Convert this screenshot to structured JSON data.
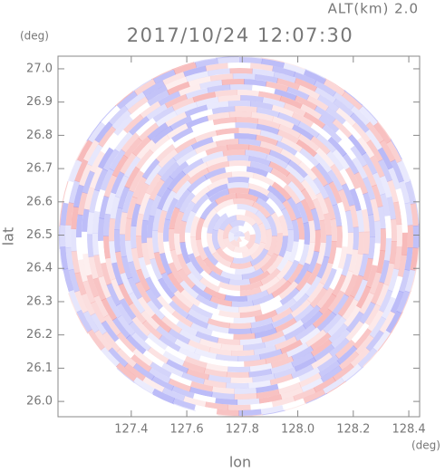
{
  "chart_data": {
    "type": "radar_ppi",
    "title": "2017/10/24 12:07:30",
    "subtitle": "ALT(km) 2.0",
    "x_label": "lon",
    "y_label": "lat",
    "x_unit": "(deg)",
    "y_unit": "(deg)",
    "xlim": [
      127.136,
      128.439
    ],
    "ylim": [
      25.954,
      27.038
    ],
    "xticks": [
      127.4,
      127.6,
      127.8,
      {
        "value": 128.0,
        "label": "128.0"
      },
      128.2,
      128.4
    ],
    "yticks": [
      {
        "value": 26.0,
        "label": "26.0"
      },
      26.1,
      26.2,
      26.3,
      26.4,
      26.5,
      26.6,
      26.7,
      26.8,
      26.9,
      {
        "value": 27.0,
        "label": "27.0"
      }
    ]
  }
}
